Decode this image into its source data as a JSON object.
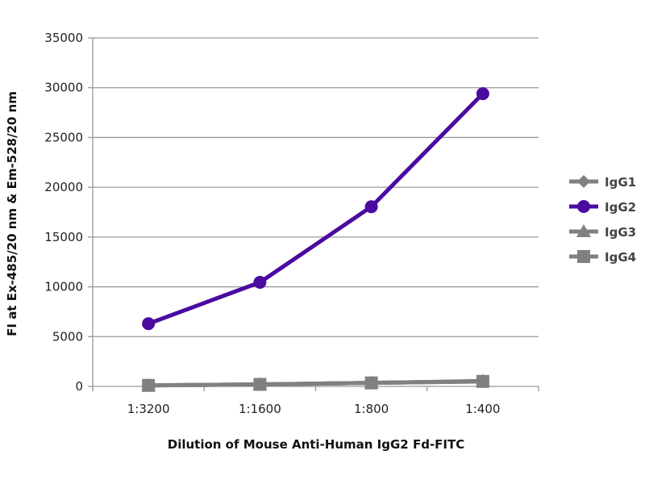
{
  "chart_data": {
    "type": "line",
    "title": "",
    "xlabel": "Dilution of Mouse Anti-Human IgG2 Fd-FITC",
    "ylabel": "FI at Ex-485/20 nm & Em-528/20 nm",
    "categories": [
      "1:3200",
      "1:1600",
      "1:800",
      "1:400"
    ],
    "ylim": [
      0,
      35000
    ],
    "yticks": [
      0,
      5000,
      10000,
      15000,
      20000,
      25000,
      30000,
      35000
    ],
    "grid": true,
    "legend": "right",
    "series": [
      {
        "name": "IgG1",
        "marker": "diamond",
        "color": "#808080",
        "values": [
          100,
          200,
          350,
          500
        ]
      },
      {
        "name": "IgG2",
        "marker": "circle",
        "color": "#4b0aa0",
        "values": [
          6300,
          10450,
          18050,
          29400
        ]
      },
      {
        "name": "IgG3",
        "marker": "triangle",
        "color": "#808080",
        "values": [
          100,
          200,
          350,
          550
        ]
      },
      {
        "name": "IgG4",
        "marker": "square",
        "color": "#808080",
        "values": [
          100,
          200,
          350,
          500
        ]
      }
    ]
  }
}
